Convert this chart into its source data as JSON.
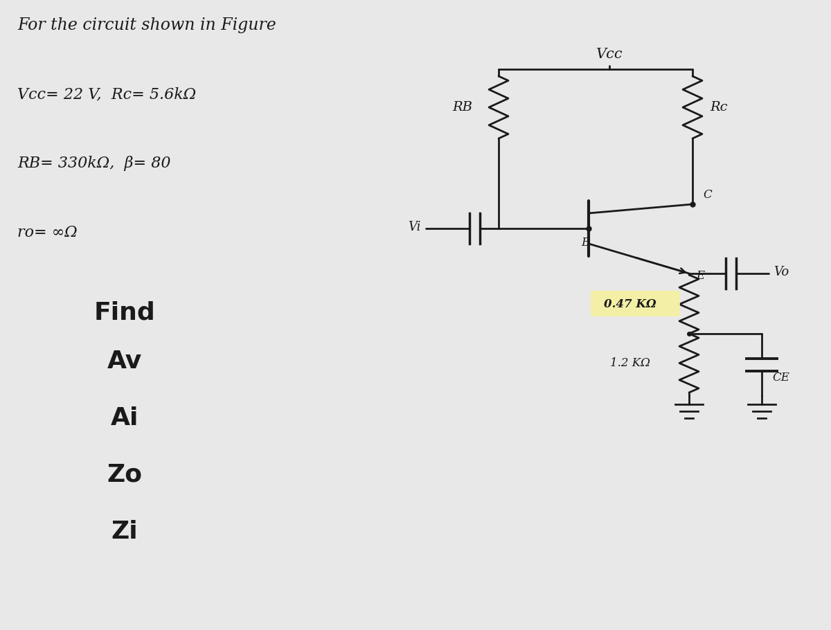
{
  "bg_color": "#e8e8e8",
  "title_text": "For the circuit shown in Figure",
  "line1": "Vcc= 22 V,  Rc= 5.6kΩ",
  "line2": "RB= 330kΩ,  β= 80",
  "line3": "ro= ∞Ω",
  "find_label": "Find",
  "find_items": [
    "Av",
    "Ai",
    "Zo",
    "Zi"
  ],
  "vcc_label": "Vcc",
  "rb_label": "RB",
  "rc_label": "Rc",
  "re1_label": "0.47 KΩ",
  "re2_label": "1.2 KΩ",
  "ce_label": "CE",
  "vi_label": "Vi",
  "vo_label": "Vo",
  "b_label": "B",
  "c_label": "C",
  "e_label": "E",
  "ink_color": "#1a1a1a",
  "highlight_color": "#f5f0a0"
}
